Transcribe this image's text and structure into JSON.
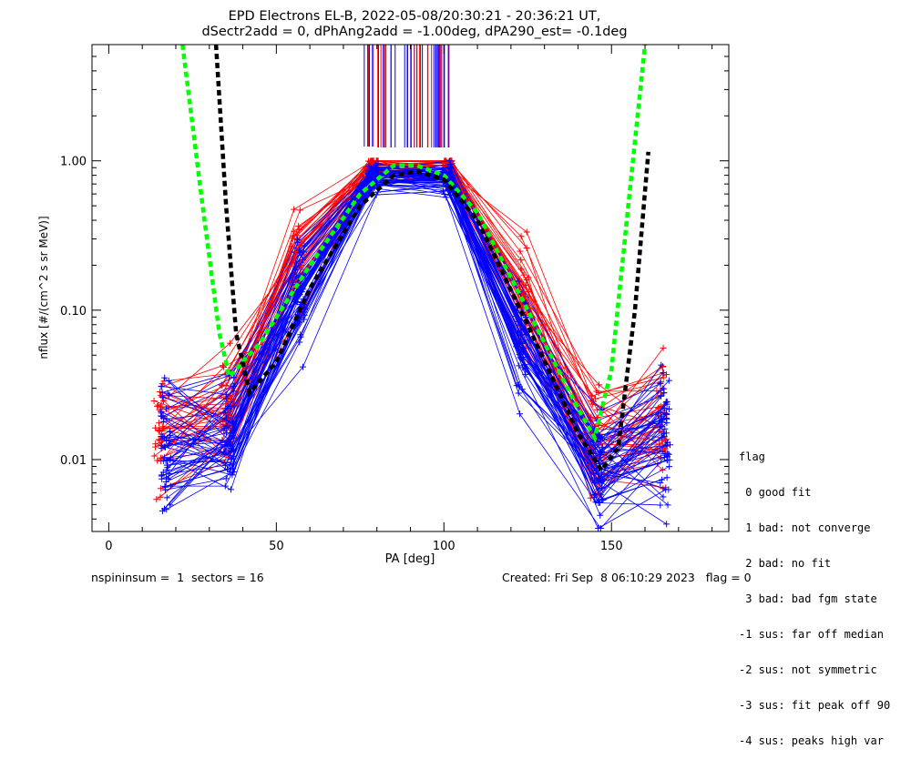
{
  "header": {
    "title_line1": "EPD Electrons EL-B, 2022-05-08/20:30:21 - 20:36:21 UT,",
    "title_line2": "dSectr2add = 0, dPhAng2add = -1.00deg, dPA290_est=  -0.1deg"
  },
  "legend": {
    "title": "flag",
    "entries": [
      " 0 good fit",
      " 1 bad: not converge",
      " 2 bad: no fit",
      " 3 bad: bad fgm state",
      "-1 sus: far off median",
      "-2 sus: not symmetric",
      "-3 sus: fit peak off 90",
      "-4 sus: peaks high var"
    ]
  },
  "footer": {
    "left": "nspininsum =  1  sectors = 16",
    "right": "Created: Fri Sep  8 06:10:29 2023   flag = 0"
  },
  "colors": {
    "red": "#ff0000",
    "blue": "#0000ff",
    "green": "#00ff00",
    "black": "#000000"
  },
  "chart_data": {
    "type": "line",
    "title": "EPD Electrons EL-B, 2022-05-08/20:30:21 - 20:36:21 UT,",
    "subtitle": "dSectr2add = 0, dPhAng2add = -1.00deg, dPA290_est=  -0.1deg",
    "xlabel": "PA [deg]",
    "ylabel": "nflux [#/(cm^2 s sr MeV)]",
    "xlim": [
      -5,
      185
    ],
    "ylim": [
      0.0033,
      6.0
    ],
    "yscale": "log",
    "x_ticks": [
      "0",
      "50",
      "100",
      "150"
    ],
    "y_ticks": [
      "0.01",
      "0.10",
      "1.00"
    ],
    "series": [
      {
        "color": "red",
        "x": [
          15,
          35,
          56,
          79,
          101,
          124,
          145,
          165
        ],
        "values": [
          0.015,
          0.018,
          0.22,
          0.93,
          0.88,
          0.13,
          0.012,
          0.02
        ]
      },
      {
        "color": "blue",
        "x": [
          17,
          36,
          57,
          79,
          101,
          123,
          146,
          166
        ],
        "values": [
          0.012,
          0.015,
          0.14,
          0.78,
          0.75,
          0.06,
          0.008,
          0.015
        ]
      },
      {
        "color": "green",
        "dashed": true,
        "x": [
          22,
          28,
          33,
          36,
          45,
          60,
          75,
          85,
          92,
          100,
          110,
          125,
          140,
          145,
          150,
          155,
          160
        ],
        "values": [
          6.0,
          0.5,
          0.07,
          0.036,
          0.06,
          0.2,
          0.6,
          0.93,
          0.93,
          0.8,
          0.45,
          0.1,
          0.022,
          0.014,
          0.04,
          0.5,
          6.0
        ]
      },
      {
        "color": "black",
        "dashed": true,
        "x": [
          32,
          35,
          38,
          42,
          50,
          60,
          75,
          85,
          92,
          100,
          110,
          125,
          140,
          147,
          152,
          157,
          161
        ],
        "values": [
          6.0,
          0.5,
          0.07,
          0.028,
          0.045,
          0.14,
          0.5,
          0.8,
          0.85,
          0.75,
          0.4,
          0.08,
          0.015,
          0.0085,
          0.012,
          0.1,
          1.15
        ]
      }
    ]
  }
}
